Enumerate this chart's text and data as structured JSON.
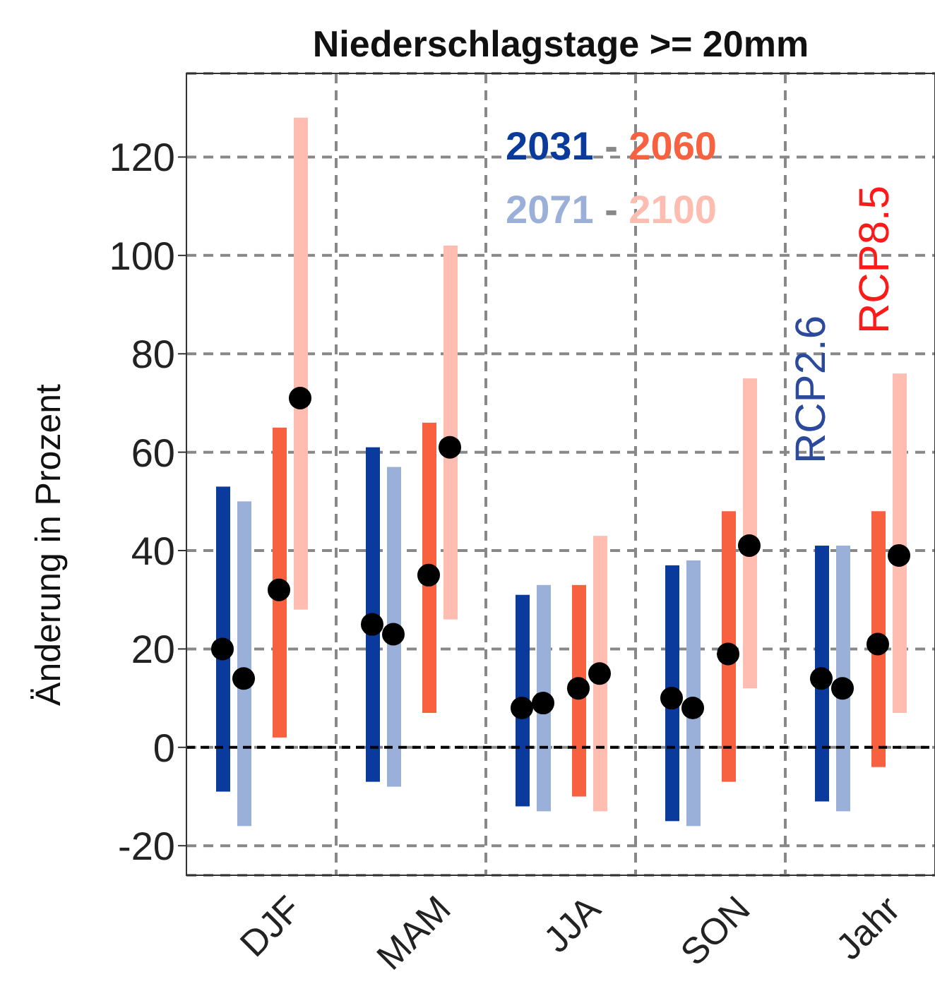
{
  "chart_data": {
    "type": "bar",
    "title": "Niederschlagstage >= 20mm",
    "ylabel": "Änderung in Prozent",
    "categories": [
      "DJF",
      "MAM",
      "JJA",
      "SON",
      "Jahr"
    ],
    "series": [
      {
        "color": "#0a3a9c",
        "base": [
          -9,
          -7,
          -12,
          -15,
          -11
        ],
        "values": [
          62,
          68,
          43,
          52,
          52
        ]
      },
      {
        "color": "#9ab0d8",
        "base": [
          -16,
          -8,
          -13,
          -16,
          -13
        ],
        "values": [
          66,
          65,
          46,
          54,
          54
        ]
      },
      {
        "color": "#f8613f",
        "base": [
          2,
          7,
          -10,
          -7,
          -4
        ],
        "values": [
          63,
          59,
          43,
          55,
          52
        ]
      },
      {
        "color": "#ffbcb0",
        "base": [
          28,
          26,
          -13,
          12,
          7
        ],
        "values": [
          100,
          76,
          56,
          63,
          69
        ]
      },
      {
        "type": "scatter",
        "color": "#000000",
        "x": [
          "DJF",
          "MAM",
          "JJA",
          "SON",
          "Jahr"
        ],
        "values": [
          20,
          25,
          8,
          10,
          14
        ]
      },
      {
        "type": "scatter",
        "color": "#000000",
        "x": [
          "DJF",
          "MAM",
          "JJA",
          "SON",
          "Jahr"
        ],
        "values": [
          14,
          23,
          9,
          8,
          12
        ]
      },
      {
        "type": "scatter",
        "color": "#000000",
        "x": [
          "DJF",
          "MAM",
          "JJA",
          "SON",
          "Jahr"
        ],
        "values": [
          32,
          35,
          12,
          19,
          21
        ]
      },
      {
        "type": "scatter",
        "color": "#000000",
        "x": [
          "DJF",
          "MAM",
          "JJA",
          "SON",
          "Jahr"
        ],
        "values": [
          71,
          61,
          15,
          41,
          39
        ]
      }
    ],
    "ylim": [
      -26,
      137
    ],
    "yticks": [
      -20,
      0,
      20,
      40,
      60,
      80,
      100,
      120
    ],
    "grid": true,
    "marker": "circle",
    "ref_lines": [
      {
        "axis": "y",
        "value": 0,
        "color": "#000000",
        "line_style": "dashed"
      }
    ],
    "annotations": [
      "2031 - 2060",
      "2071 - 2100",
      "RCP2.6",
      "RCP8.5"
    ]
  }
}
